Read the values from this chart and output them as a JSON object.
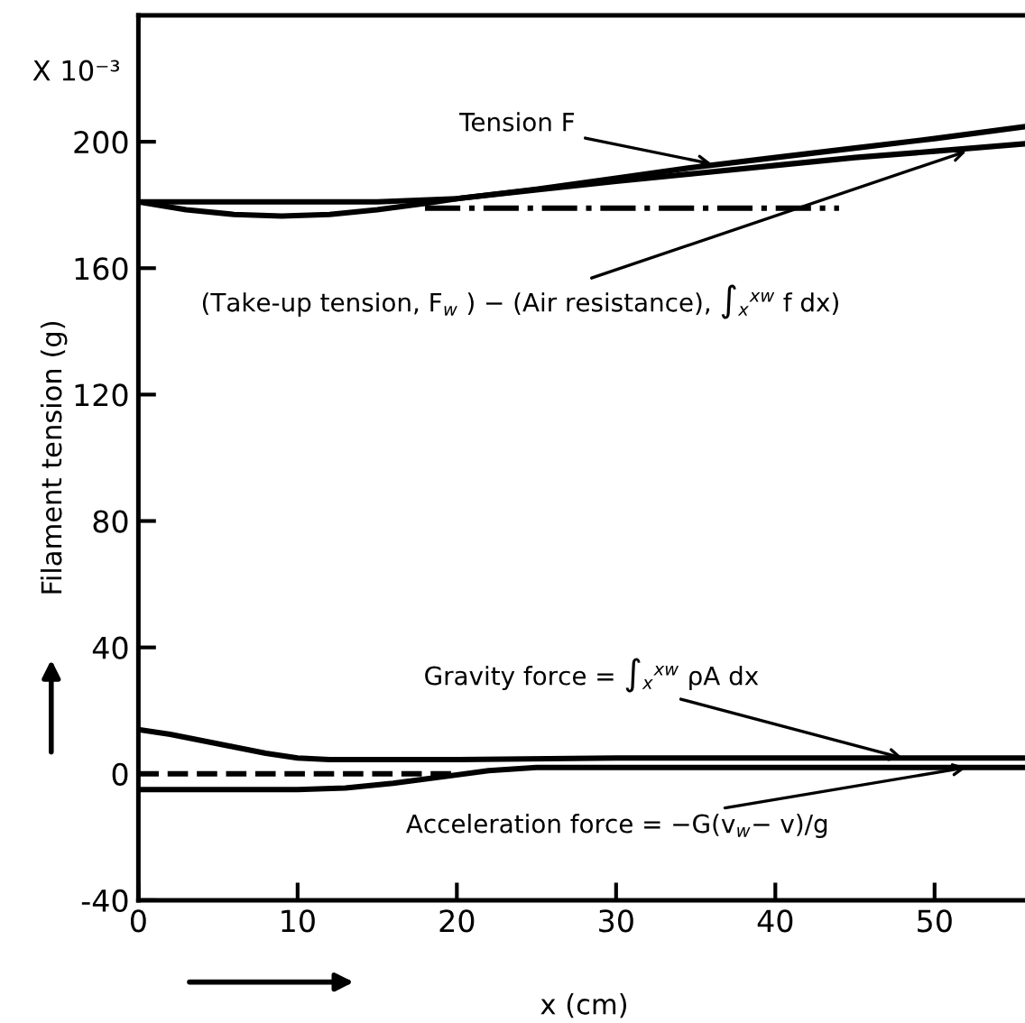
{
  "chart_data": {
    "type": "line",
    "xlabel": "x (cm)",
    "ylabel": "Filament tension (g)",
    "xlim": [
      0,
      56
    ],
    "ylim": [
      -40,
      240
    ],
    "xticks": [
      0,
      10,
      20,
      30,
      40,
      50
    ],
    "yticks": [
      -40,
      0,
      40,
      80,
      120,
      160,
      200
    ],
    "grid": false,
    "legend": false,
    "marker": "none",
    "series": [
      {
        "color": "#000000",
        "line_style": "solid",
        "x": [
          0,
          5,
          10,
          15,
          20,
          25,
          30,
          35,
          40,
          45,
          50,
          56
        ],
        "values": [
          181,
          181,
          181,
          181,
          182,
          185,
          188.5,
          192,
          195,
          198,
          201,
          205
        ]
      },
      {
        "color": "#000000",
        "line_style": "solid",
        "x": [
          0,
          3,
          6,
          9,
          12,
          15,
          18,
          20,
          25,
          30,
          35,
          40,
          45,
          50,
          56
        ],
        "values": [
          181,
          178.5,
          177,
          176.5,
          177,
          178.5,
          180.5,
          182,
          184.8,
          187.5,
          190,
          192.5,
          195,
          197,
          199.5
        ]
      },
      {
        "color": "#000000",
        "line_style": "dashdot",
        "x": [
          18,
          44
        ],
        "values": [
          179,
          179
        ]
      },
      {
        "color": "#000000",
        "line_style": "solid",
        "x": [
          0,
          2,
          4,
          6,
          8,
          10,
          12,
          20,
          30,
          40,
          50,
          56
        ],
        "values": [
          14,
          12.5,
          10.5,
          8.5,
          6.5,
          5,
          4.5,
          4.5,
          5,
          5,
          5,
          5
        ]
      },
      {
        "color": "#000000",
        "line_style": "solid",
        "x": [
          0,
          5,
          10,
          13,
          16,
          19,
          22,
          25,
          30,
          40,
          50,
          56
        ],
        "values": [
          -5,
          -5,
          -5,
          -4.5,
          -3,
          -1,
          1,
          2,
          2,
          2,
          2,
          2
        ]
      },
      {
        "color": "#000000",
        "line_style": "dashed",
        "x": [
          0,
          20
        ],
        "values": [
          0,
          0
        ]
      }
    ],
    "annotations": [
      "X 10⁻³",
      {
        "text": "Tension F",
        "x": 36,
        "y": 193
      },
      {
        "text": "(Take-up tension, F$_{w}$ ) − (Air resistance), ∫$_{x}$$^{xw}$ f dx)",
        "x": 52,
        "y": 197
      },
      {
        "text": "Gravity force = ∫$_{x}$$^{xw}$ ρA dx",
        "x": 48,
        "y": 5
      },
      {
        "text": "Acceleration force = −G(v$_{w}$− v)/g",
        "x": 52,
        "y": 2
      }
    ]
  }
}
